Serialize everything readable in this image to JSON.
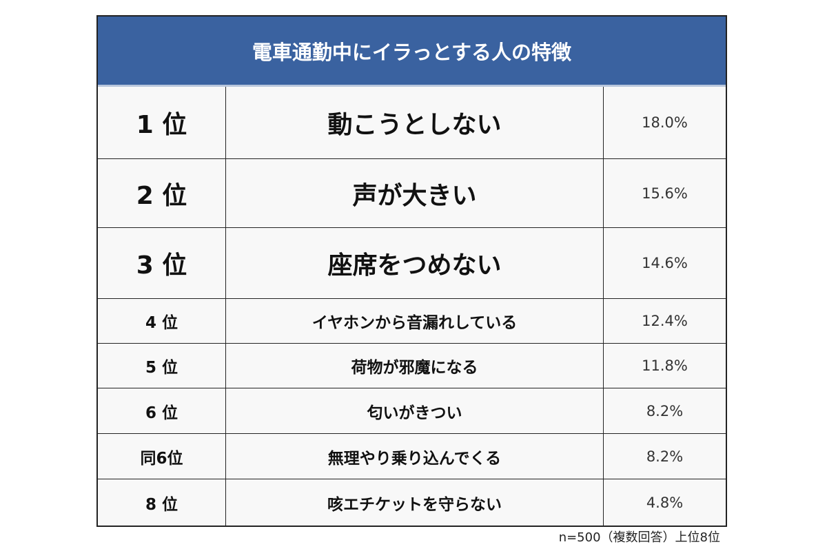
{
  "chart_data": {
    "type": "table",
    "title": "電車通勤中にイラっとする人の特徴",
    "rows": [
      {
        "rank": "1 位",
        "item": "動こうとしない",
        "value": "18.0%"
      },
      {
        "rank": "2 位",
        "item": "声が大きい",
        "value": "15.6%"
      },
      {
        "rank": "3 位",
        "item": "座席をつめない",
        "value": "14.6%"
      },
      {
        "rank": "4 位",
        "item": "イヤホンから音漏れしている",
        "value": "12.4%"
      },
      {
        "rank": "5 位",
        "item": "荷物が邪魔になる",
        "value": "11.8%"
      },
      {
        "rank": "6 位",
        "item": "匂いがきつい",
        "value": "8.2%"
      },
      {
        "rank": "同6位",
        "item": "無理やり乗り込んでくる",
        "value": "8.2%"
      },
      {
        "rank": "8 位",
        "item": "咳エチケットを守らない",
        "value": "4.8%"
      }
    ],
    "footnote": "n=500（複数回答）上位8位",
    "colors": {
      "header": "#3a62a0",
      "header_text": "#ffffff",
      "border": "#222222"
    }
  }
}
